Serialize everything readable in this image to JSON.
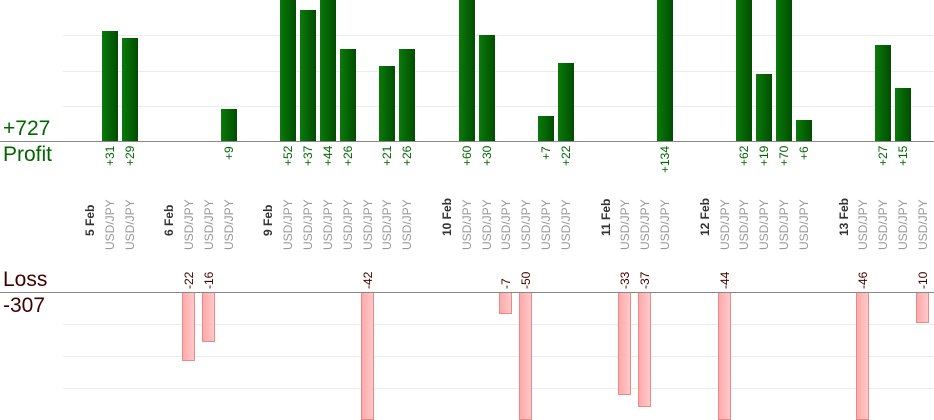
{
  "summary": {
    "profit_total": "+727",
    "profit_label": "Profit",
    "loss_label": "Loss",
    "loss_total": "-307"
  },
  "colors": {
    "profit": "#006600",
    "loss": "#400000",
    "profit_bar": "#0a7a0a",
    "loss_bar": "#ffb0b0",
    "pair": "#999999"
  },
  "chart_data": {
    "type": "bar",
    "title": "",
    "ylim_profit_visible": [
      0,
      39
    ],
    "ylim_loss_visible": [
      -37,
      0
    ],
    "grid": true,
    "entries": [
      {
        "date": "5 Feb"
      },
      {
        "pair": "USD/JPY",
        "value": 31,
        "label": "+31"
      },
      {
        "pair": "USD/JPY",
        "value": 29,
        "label": "+29"
      },
      {
        "date": "6 Feb"
      },
      {
        "pair": "USD/JPY",
        "value": -22,
        "label": "-22"
      },
      {
        "pair": "USD/JPY",
        "value": -16,
        "label": "-16"
      },
      {
        "pair": "USD/JPY",
        "value": 9,
        "label": "+9"
      },
      {
        "date": "9 Feb"
      },
      {
        "pair": "USD/JPY",
        "value": 52,
        "label": "+52"
      },
      {
        "pair": "USD/JPY",
        "value": 37,
        "label": "+37"
      },
      {
        "pair": "USD/JPY",
        "value": 44,
        "label": "+44"
      },
      {
        "pair": "USD/JPY",
        "value": 26,
        "label": "+26"
      },
      {
        "pair": "USD/JPY",
        "value": -42,
        "label": "-42"
      },
      {
        "pair": "USD/JPY",
        "value": 21,
        "label": "+21"
      },
      {
        "pair": "USD/JPY",
        "value": 26,
        "label": "+26"
      },
      {
        "date": "10 Feb"
      },
      {
        "pair": "USD/JPY",
        "value": 60,
        "label": "+60"
      },
      {
        "pair": "USD/JPY",
        "value": 30,
        "label": "+30"
      },
      {
        "pair": "USD/JPY",
        "value": -7,
        "label": "-7"
      },
      {
        "pair": "USD/JPY",
        "value": -50,
        "label": "-50"
      },
      {
        "pair": "USD/JPY",
        "value": 7,
        "label": "+7"
      },
      {
        "pair": "USD/JPY",
        "value": 22,
        "label": "+22"
      },
      {
        "date": "11 Feb"
      },
      {
        "pair": "USD/JPY",
        "value": -33,
        "label": "-33"
      },
      {
        "pair": "USD/JPY",
        "value": -37,
        "label": "-37"
      },
      {
        "pair": "USD/JPY",
        "value": 134,
        "label": "+134"
      },
      {
        "date": "12 Feb"
      },
      {
        "pair": "USD/JPY",
        "value": -44,
        "label": "-44"
      },
      {
        "pair": "USD/JPY",
        "value": 62,
        "label": "+62"
      },
      {
        "pair": "USD/JPY",
        "value": 19,
        "label": "+19"
      },
      {
        "pair": "USD/JPY",
        "value": 70,
        "label": "+70"
      },
      {
        "pair": "USD/JPY",
        "value": 6,
        "label": "+6"
      },
      {
        "date": "13 Feb"
      },
      {
        "pair": "USD/JPY",
        "value": -46,
        "label": "-46"
      },
      {
        "pair": "USD/JPY",
        "value": 27,
        "label": "+27"
      },
      {
        "pair": "USD/JPY",
        "value": 15,
        "label": "+15"
      },
      {
        "pair": "USD/JPY",
        "value": -10,
        "label": "-10"
      }
    ]
  }
}
